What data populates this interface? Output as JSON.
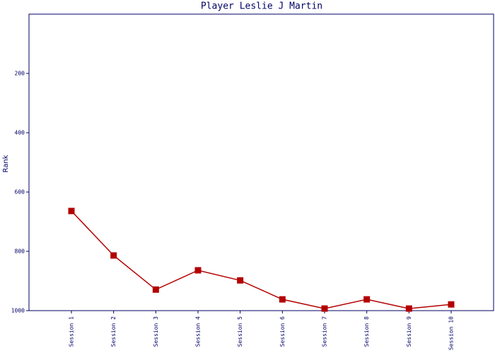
{
  "chart_data": {
    "type": "line",
    "title": "Player Leslie J Martin",
    "y_label": "Rank",
    "categories": [
      "Session 1",
      "Session 2",
      "Session 3",
      "Session 4",
      "Session 5",
      "Session 6",
      "Session 7",
      "Session 8",
      "Session 9",
      "Session 10"
    ],
    "series": [
      {
        "name": "Rank",
        "color": "#b30000",
        "values": [
          664,
          814,
          929,
          864,
          898,
          962,
          993,
          962,
          993,
          979
        ]
      }
    ],
    "ylim": [
      0,
      1000
    ],
    "y_inverted": true,
    "yticks": [
      200,
      400,
      600,
      800,
      1000
    ],
    "grid": false
  }
}
